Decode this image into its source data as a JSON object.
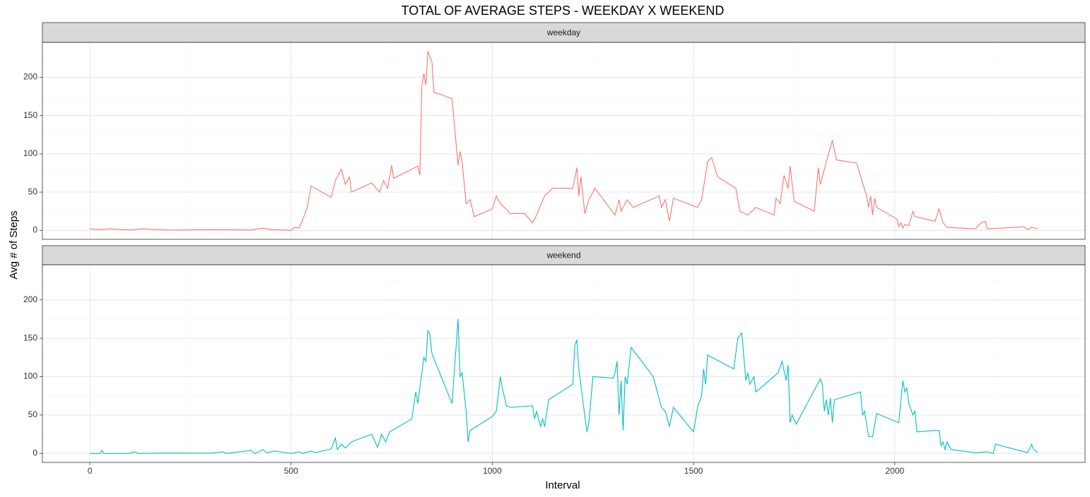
{
  "chart_data": {
    "type": "line",
    "title": "TOTAL OF AVERAGE STEPS - WEEKDAY X WEEKEND",
    "x_label": "Interval",
    "y_label": "Avg # of Steps",
    "xlim": [
      -117.75,
      2472.75
    ],
    "xticks": [
      0,
      500,
      1000,
      1500,
      2000
    ],
    "x_minor_ticks": [
      250,
      750,
      1250,
      1750,
      2250
    ],
    "ylim": [
      -11.7,
      245.7
    ],
    "yticks": [
      0,
      50,
      100,
      150,
      200
    ],
    "y_minor_ticks": [
      25,
      75,
      125,
      175,
      225
    ],
    "grid": true,
    "series": [
      {
        "name": "weekday",
        "color": "#F8766D",
        "x": [
          0,
          25,
          50,
          100,
          130,
          200,
          300,
          400,
          430,
          450,
          500,
          510,
          520,
          530,
          540,
          550,
          600,
          610,
          625,
          635,
          645,
          650,
          700,
          720,
          730,
          740,
          750,
          755,
          800,
          815,
          820,
          825,
          830,
          835,
          840,
          850,
          855,
          870,
          900,
          915,
          920,
          925,
          935,
          945,
          955,
          1000,
          1010,
          1020,
          1030,
          1045,
          1080,
          1100,
          1110,
          1130,
          1150,
          1200,
          1210,
          1215,
          1220,
          1230,
          1240,
          1255,
          1305,
          1315,
          1320,
          1335,
          1350,
          1415,
          1420,
          1430,
          1440,
          1450,
          1510,
          1520,
          1535,
          1545,
          1560,
          1605,
          1615,
          1635,
          1655,
          1700,
          1705,
          1715,
          1725,
          1735,
          1740,
          1750,
          1800,
          1810,
          1815,
          1830,
          1845,
          1855,
          1905,
          1930,
          1935,
          1940,
          1945,
          1950,
          1955,
          2005,
          2010,
          2015,
          2020,
          2025,
          2035,
          2045,
          2050,
          2100,
          2110,
          2120,
          2130,
          2200,
          2215,
          2225,
          2230,
          2300,
          2320,
          2330,
          2340,
          2355
        ],
        "values": [
          2,
          1,
          2,
          0.5,
          2,
          0.3,
          1,
          0.5,
          3,
          1,
          0,
          4,
          3,
          15,
          30,
          58,
          43,
          65,
          80,
          60,
          70,
          50,
          62,
          50,
          65,
          55,
          85,
          68,
          80,
          84,
          72,
          190,
          205,
          190,
          234,
          220,
          180,
          178,
          172,
          85,
          103,
          90,
          35,
          40,
          18,
          28,
          45,
          35,
          30,
          22,
          22,
          10,
          20,
          45,
          55,
          55,
          82,
          45,
          70,
          22,
          40,
          55,
          20,
          40,
          25,
          40,
          30,
          45,
          30,
          40,
          12,
          42,
          30,
          40,
          90,
          95,
          70,
          55,
          25,
          20,
          30,
          20,
          42,
          35,
          72,
          55,
          84,
          38,
          25,
          82,
          60,
          90,
          118,
          92,
          88,
          45,
          30,
          45,
          20,
          42,
          30,
          15,
          5,
          10,
          3,
          8,
          6,
          25,
          18,
          12,
          28,
          10,
          4,
          2,
          10,
          12,
          2,
          4,
          5,
          1,
          4,
          2
        ]
      },
      {
        "name": "weekend",
        "color": "#00BFC4",
        "x": [
          0,
          25,
          30,
          35,
          100,
          110,
          120,
          200,
          300,
          330,
          340,
          400,
          410,
          430,
          440,
          460,
          500,
          520,
          530,
          550,
          560,
          600,
          610,
          615,
          625,
          635,
          650,
          700,
          715,
          725,
          735,
          745,
          800,
          810,
          815,
          820,
          830,
          835,
          840,
          845,
          850,
          900,
          915,
          920,
          925,
          935,
          940,
          945,
          1000,
          1010,
          1020,
          1025,
          1035,
          1045,
          1100,
          1105,
          1110,
          1120,
          1125,
          1130,
          1140,
          1200,
          1205,
          1210,
          1215,
          1235,
          1240,
          1250,
          1300,
          1305,
          1310,
          1315,
          1320,
          1325,
          1330,
          1335,
          1345,
          1400,
          1420,
          1430,
          1440,
          1450,
          1500,
          1510,
          1520,
          1525,
          1530,
          1535,
          1600,
          1610,
          1620,
          1630,
          1635,
          1640,
          1650,
          1655,
          1710,
          1720,
          1730,
          1735,
          1740,
          1745,
          1755,
          1815,
          1820,
          1825,
          1830,
          1835,
          1840,
          1845,
          1850,
          1915,
          1920,
          1925,
          1935,
          1945,
          1955,
          2010,
          2020,
          2025,
          2030,
          2035,
          2045,
          2050,
          2055,
          2100,
          2110,
          2115,
          2120,
          2125,
          2130,
          2140,
          2200,
          2230,
          2245,
          2250,
          2330,
          2340,
          2345,
          2355
        ],
        "values": [
          0,
          0,
          4,
          0,
          0,
          2,
          0,
          0.5,
          0.3,
          2,
          0,
          4,
          0,
          5,
          1,
          3,
          0,
          2,
          0,
          3,
          1,
          6,
          20,
          5,
          12,
          7,
          15,
          25,
          8,
          25,
          15,
          28,
          45,
          80,
          65,
          85,
          125,
          120,
          160,
          155,
          130,
          65,
          175,
          100,
          105,
          55,
          15,
          30,
          48,
          55,
          100,
          85,
          62,
          60,
          62,
          45,
          55,
          35,
          45,
          35,
          70,
          90,
          140,
          148,
          110,
          28,
          40,
          100,
          98,
          105,
          120,
          50,
          95,
          30,
          100,
          90,
          138,
          100,
          60,
          55,
          35,
          60,
          28,
          60,
          75,
          110,
          90,
          128,
          110,
          150,
          157,
          95,
          105,
          90,
          100,
          80,
          105,
          120,
          95,
          115,
          40,
          50,
          38,
          97,
          90,
          55,
          70,
          50,
          72,
          40,
          70,
          80,
          50,
          55,
          22,
          22,
          52,
          40,
          95,
          80,
          85,
          65,
          50,
          55,
          28,
          30,
          30,
          10,
          15,
          5,
          15,
          5,
          1,
          2,
          0,
          12,
          1,
          12,
          5,
          1
        ]
      }
    ]
  }
}
